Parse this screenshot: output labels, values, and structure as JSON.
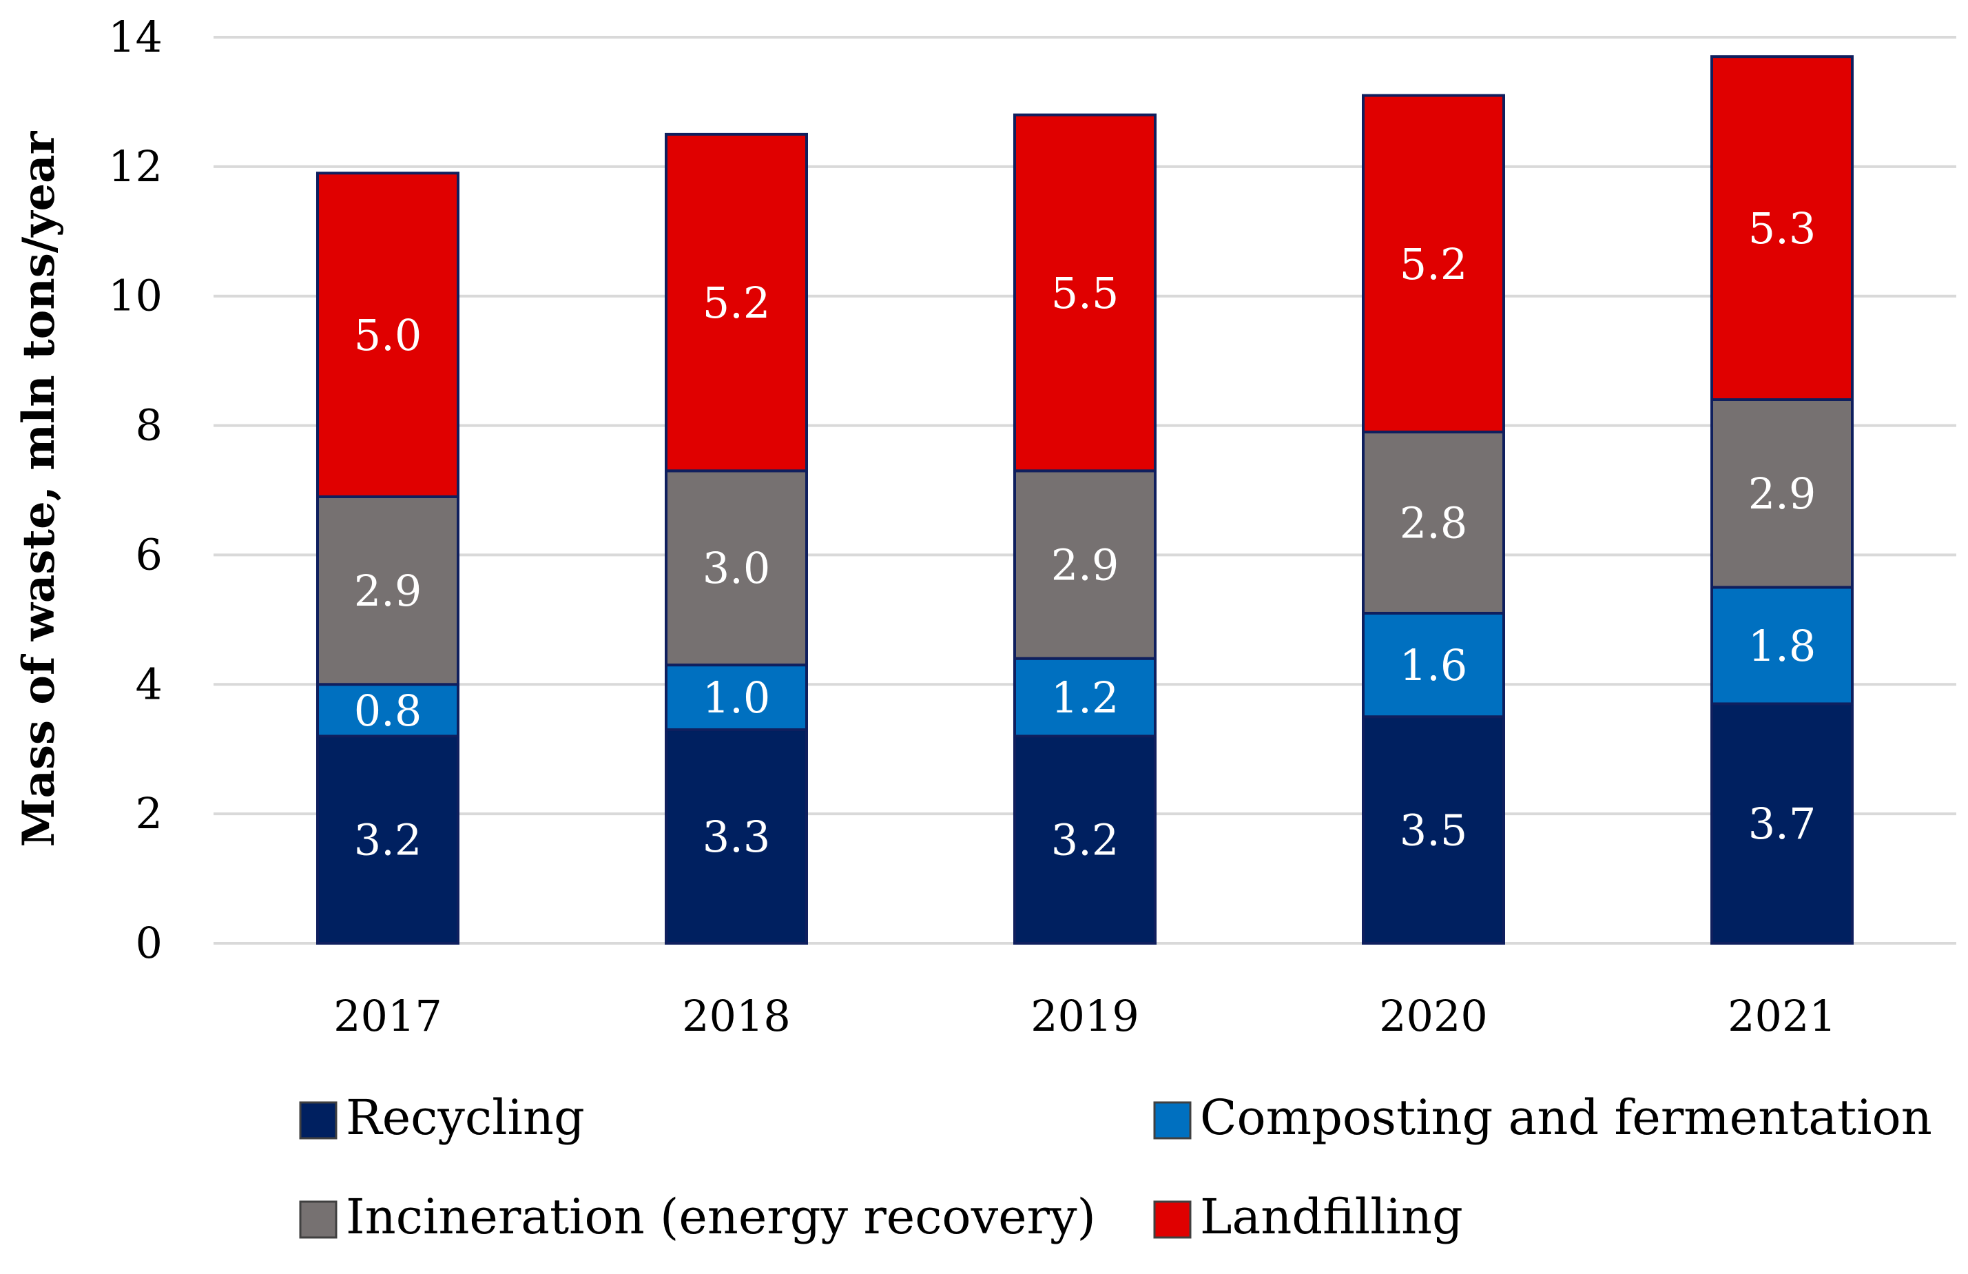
{
  "chart_data": {
    "type": "bar",
    "stacked": true,
    "title": "",
    "xlabel": "",
    "ylabel": "Mass of waste, mln tons/year",
    "ylim": [
      0,
      14
    ],
    "yticks": [
      0,
      2,
      4,
      6,
      8,
      10,
      12,
      14
    ],
    "grid": true,
    "legend_position": "bottom",
    "categories": [
      "2017",
      "2018",
      "2019",
      "2020",
      "2021"
    ],
    "series": [
      {
        "name": "Recycling",
        "color": "#002060",
        "values": [
          3.2,
          3.3,
          3.2,
          3.5,
          3.7
        ],
        "labels": [
          "3.2",
          "3.3",
          "3.2",
          "3.5",
          "3.7"
        ]
      },
      {
        "name": "Composting and fermentation",
        "color": "#0070c0",
        "values": [
          0.8,
          1.0,
          1.2,
          1.6,
          1.8
        ],
        "labels": [
          "0.8",
          "1.0",
          "1.2",
          "1.6",
          "1.8"
        ]
      },
      {
        "name": "Incineration (energy recovery)",
        "color": "#767171",
        "values": [
          2.9,
          3.0,
          2.9,
          2.8,
          2.9
        ],
        "labels": [
          "2.9",
          "3.0",
          "2.9",
          "2.8",
          "2.9"
        ]
      },
      {
        "name": "Landfilling",
        "color": "#e00000",
        "values": [
          5.0,
          5.2,
          5.5,
          5.2,
          5.3
        ],
        "labels": [
          "5.0",
          "5.2",
          "5.5",
          "5.2",
          "5.3"
        ]
      }
    ]
  }
}
